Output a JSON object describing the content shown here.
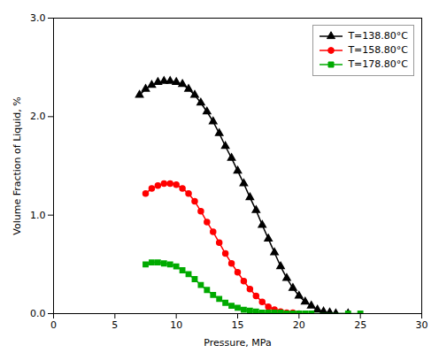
{
  "chart_data": {
    "type": "line",
    "xlabel": "Pressure, MPa",
    "ylabel": "Volume Fraction of Liquid, %",
    "xlim": [
      0,
      30
    ],
    "ylim": [
      0.0,
      3.0
    ],
    "xticks": [
      0,
      5,
      10,
      15,
      20,
      25,
      30
    ],
    "yticks": [
      {
        "value": 0.0,
        "label": "0.0"
      },
      {
        "value": 1.0,
        "label": "1.0"
      },
      {
        "value": 2.0,
        "label": "2.0"
      },
      {
        "value": 3.0,
        "label": "3.0"
      }
    ],
    "grid": false,
    "legend": "upper right",
    "series": [
      {
        "name": "T=138.80°C",
        "color": "#000000",
        "marker": "triangle",
        "x": [
          7.0,
          7.5,
          8.0,
          8.5,
          9.0,
          9.5,
          10.0,
          10.5,
          11.0,
          11.5,
          12.0,
          12.5,
          13.0,
          13.5,
          14.0,
          14.5,
          15.0,
          15.5,
          16.0,
          16.5,
          17.0,
          17.5,
          18.0,
          18.5,
          19.0,
          19.5,
          20.0,
          20.5,
          21.0,
          21.5,
          22.0,
          22.5,
          23.0,
          24.0
        ],
        "values": [
          2.22,
          2.28,
          2.32,
          2.35,
          2.36,
          2.36,
          2.35,
          2.33,
          2.28,
          2.22,
          2.14,
          2.05,
          1.95,
          1.83,
          1.7,
          1.58,
          1.45,
          1.32,
          1.18,
          1.05,
          0.9,
          0.76,
          0.62,
          0.48,
          0.36,
          0.26,
          0.18,
          0.12,
          0.08,
          0.04,
          0.02,
          0.01,
          0.0,
          0.0
        ]
      },
      {
        "name": "T=158.80°C",
        "color": "#ff0000",
        "marker": "circle",
        "x": [
          7.5,
          8.0,
          8.5,
          9.0,
          9.5,
          10.0,
          10.5,
          11.0,
          11.5,
          12.0,
          12.5,
          13.0,
          13.5,
          14.0,
          14.5,
          15.0,
          15.5,
          16.0,
          16.5,
          17.0,
          17.5,
          18.0,
          18.5,
          19.0,
          19.5,
          20.0
        ],
        "values": [
          1.22,
          1.27,
          1.3,
          1.32,
          1.32,
          1.31,
          1.27,
          1.22,
          1.14,
          1.04,
          0.93,
          0.83,
          0.72,
          0.61,
          0.51,
          0.42,
          0.33,
          0.25,
          0.18,
          0.12,
          0.07,
          0.04,
          0.02,
          0.01,
          0.01,
          0.0
        ]
      },
      {
        "name": "T=178.80°C",
        "color": "#00aa00",
        "marker": "square",
        "x": [
          7.5,
          8.0,
          8.5,
          9.0,
          9.5,
          10.0,
          10.5,
          11.0,
          11.5,
          12.0,
          12.5,
          13.0,
          13.5,
          14.0,
          14.5,
          15.0,
          15.5,
          16.0,
          16.5,
          17.0,
          17.5,
          18.0,
          18.5,
          19.0,
          19.5,
          20.0,
          20.5,
          21.0,
          24.0,
          25.0
        ],
        "values": [
          0.5,
          0.52,
          0.52,
          0.51,
          0.5,
          0.48,
          0.44,
          0.4,
          0.35,
          0.29,
          0.24,
          0.19,
          0.15,
          0.11,
          0.08,
          0.06,
          0.04,
          0.03,
          0.02,
          0.01,
          0.01,
          0.01,
          0.01,
          0.0,
          0.0,
          0.0,
          0.0,
          0.0,
          0.0,
          0.0
        ]
      }
    ]
  }
}
